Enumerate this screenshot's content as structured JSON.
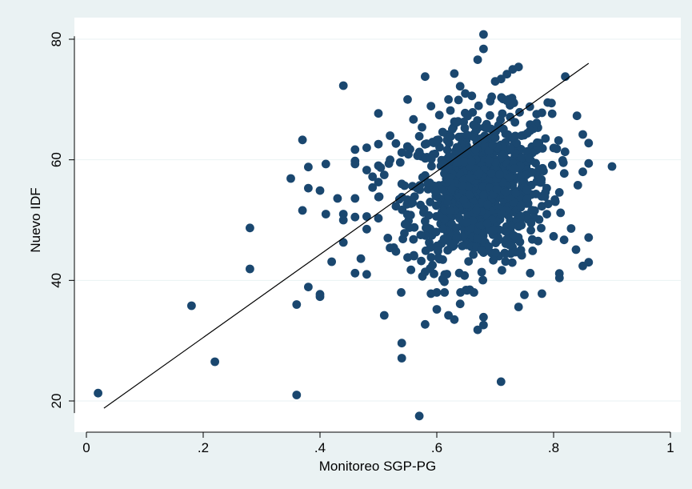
{
  "chart_data": {
    "type": "scatter",
    "xlabel": "Monitoreo SGP-PG",
    "ylabel": "Nuevo IDF",
    "xlim": [
      0,
      1
    ],
    "ylim": [
      17,
      82
    ],
    "x_ticks": [
      {
        "value": 0,
        "label": "0"
      },
      {
        "value": 0.2,
        "label": ".2"
      },
      {
        "value": 0.4,
        "label": ".4"
      },
      {
        "value": 0.6,
        "label": ".6"
      },
      {
        "value": 0.8,
        "label": ".8"
      },
      {
        "value": 1,
        "label": "1"
      }
    ],
    "y_ticks": [
      {
        "value": 20,
        "label": "20"
      },
      {
        "value": 40,
        "label": "40"
      },
      {
        "value": 60,
        "label": "60"
      },
      {
        "value": 80,
        "label": "80"
      }
    ],
    "grid": "horizontal",
    "colors": {
      "background": "#eaf2f3",
      "plot_area": "#ffffff",
      "marker": "#1a476f",
      "fit_line": "#000000"
    },
    "fit_line": {
      "x": [
        0.03,
        0.86
      ],
      "y": [
        18.8,
        76.0
      ]
    },
    "points": [
      [
        0.02,
        21.3
      ],
      [
        0.18,
        35.8
      ],
      [
        0.22,
        26.5
      ],
      [
        0.28,
        48.7
      ],
      [
        0.28,
        41.9
      ],
      [
        0.35,
        56.9
      ],
      [
        0.36,
        36.0
      ],
      [
        0.36,
        21.0
      ],
      [
        0.37,
        63.3
      ],
      [
        0.37,
        51.6
      ],
      [
        0.38,
        58.8
      ],
      [
        0.38,
        55.3
      ],
      [
        0.38,
        38.9
      ],
      [
        0.4,
        54.9
      ],
      [
        0.4,
        37.7
      ],
      [
        0.4,
        37.3
      ],
      [
        0.41,
        59.3
      ],
      [
        0.41,
        51.0
      ],
      [
        0.42,
        43.1
      ],
      [
        0.43,
        53.6
      ],
      [
        0.44,
        72.3
      ],
      [
        0.44,
        51.0
      ],
      [
        0.44,
        50.0
      ],
      [
        0.44,
        46.3
      ],
      [
        0.46,
        61.7
      ],
      [
        0.46,
        59.8
      ],
      [
        0.46,
        59.3
      ],
      [
        0.46,
        53.6
      ],
      [
        0.46,
        50.5
      ],
      [
        0.46,
        41.2
      ],
      [
        0.47,
        43.6
      ],
      [
        0.48,
        62.0
      ],
      [
        0.48,
        58.3
      ],
      [
        0.48,
        50.6
      ],
      [
        0.48,
        48.5
      ],
      [
        0.48,
        41.0
      ],
      [
        0.49,
        57.2
      ],
      [
        0.49,
        55.4
      ],
      [
        0.5,
        67.7
      ],
      [
        0.5,
        62.6
      ],
      [
        0.5,
        56.3
      ],
      [
        0.5,
        50.3
      ],
      [
        0.51,
        57.5
      ],
      [
        0.51,
        34.2
      ],
      [
        0.52,
        64.0
      ],
      [
        0.52,
        60.0
      ],
      [
        0.52,
        45.4
      ],
      [
        0.53,
        62.7
      ],
      [
        0.53,
        52.3
      ],
      [
        0.53,
        44.8
      ],
      [
        0.54,
        61.2
      ],
      [
        0.54,
        56.0
      ],
      [
        0.54,
        29.6
      ],
      [
        0.54,
        27.1
      ],
      [
        0.55,
        70.0
      ],
      [
        0.55,
        43.8
      ],
      [
        0.56,
        66.7
      ],
      [
        0.56,
        46.8
      ],
      [
        0.57,
        17.5
      ],
      [
        0.57,
        63.9
      ],
      [
        0.58,
        73.8
      ],
      [
        0.58,
        57.4
      ],
      [
        0.58,
        41.4
      ],
      [
        0.58,
        32.7
      ],
      [
        0.59,
        68.9
      ],
      [
        0.59,
        37.8
      ],
      [
        0.6,
        38.0
      ],
      [
        0.6,
        35.2
      ],
      [
        0.61,
        64.6
      ],
      [
        0.61,
        40.2
      ],
      [
        0.62,
        70.0
      ],
      [
        0.62,
        34.2
      ],
      [
        0.63,
        74.3
      ],
      [
        0.63,
        33.5
      ],
      [
        0.64,
        72.2
      ],
      [
        0.64,
        36.1
      ],
      [
        0.65,
        38.4
      ],
      [
        0.66,
        70.6
      ],
      [
        0.67,
        76.6
      ],
      [
        0.67,
        31.8
      ],
      [
        0.68,
        80.8
      ],
      [
        0.68,
        78.4
      ],
      [
        0.68,
        33.9
      ],
      [
        0.68,
        32.6
      ],
      [
        0.7,
        73.0
      ],
      [
        0.71,
        73.4
      ],
      [
        0.71,
        23.2
      ],
      [
        0.72,
        74.2
      ],
      [
        0.72,
        69.8
      ],
      [
        0.73,
        75.0
      ],
      [
        0.74,
        75.4
      ],
      [
        0.74,
        35.6
      ],
      [
        0.75,
        37.6
      ],
      [
        0.76,
        41.2
      ],
      [
        0.78,
        67.8
      ],
      [
        0.78,
        37.8
      ],
      [
        0.79,
        69.5
      ],
      [
        0.8,
        47.3
      ],
      [
        0.81,
        40.4
      ],
      [
        0.82,
        73.8
      ],
      [
        0.83,
        48.6
      ],
      [
        0.84,
        67.3
      ],
      [
        0.85,
        64.2
      ],
      [
        0.85,
        58.0
      ],
      [
        0.85,
        42.4
      ],
      [
        0.86,
        59.4
      ],
      [
        0.86,
        47.1
      ],
      [
        0.86,
        43.0
      ],
      [
        0.9,
        58.9
      ]
    ],
    "cluster": {
      "x_mean": 0.675,
      "x_sd": 0.06,
      "y_mean": 55.0,
      "y_sd": 6.2,
      "count": 900
    }
  }
}
